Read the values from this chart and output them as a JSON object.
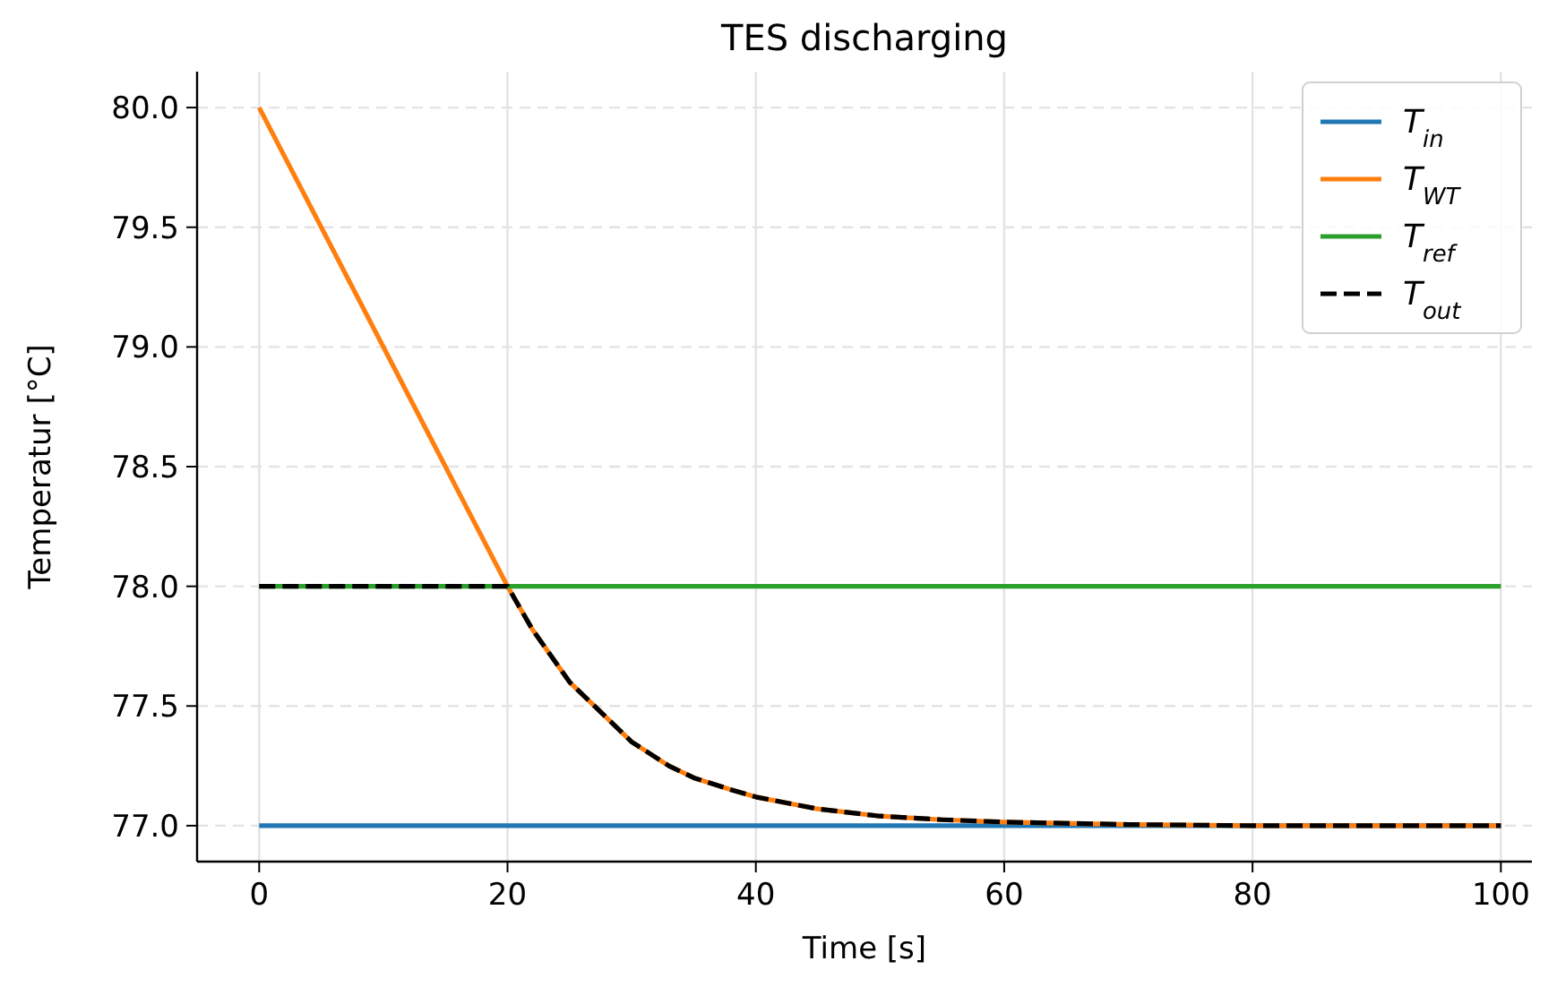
{
  "chart_data": {
    "type": "line",
    "title": "TES discharging",
    "xlabel": "Time [s]",
    "ylabel": "Temperatur [°C]",
    "xlim": [
      -5,
      102.5
    ],
    "ylim": [
      76.85,
      80.15
    ],
    "xticks": [
      0,
      20,
      40,
      60,
      80,
      100
    ],
    "yticks": [
      {
        "value": 77,
        "label": "77.0"
      },
      {
        "value": 77.5,
        "label": "77.5"
      },
      {
        "value": 78,
        "label": "78.0"
      },
      {
        "value": 78.5,
        "label": "78.5"
      },
      {
        "value": 79,
        "label": "79.0"
      },
      {
        "value": 79.5,
        "label": "79.5"
      },
      {
        "value": 80,
        "label": "80.0"
      }
    ],
    "grid": true,
    "legend": "top right",
    "series": [
      {
        "name": "T$_{in}$",
        "color": "#1f77b4",
        "x": [
          0,
          100
        ],
        "values": [
          77,
          77
        ]
      },
      {
        "name": "T$_{WT}$",
        "color": "#ff7f0e",
        "x": [
          0,
          20,
          22,
          25,
          28,
          30,
          33,
          35,
          38,
          40,
          45,
          50,
          55,
          60,
          70,
          80,
          90,
          100
        ],
        "values": [
          80,
          78,
          77.82,
          77.6,
          77.45,
          77.35,
          77.25,
          77.2,
          77.15,
          77.12,
          77.07,
          77.04,
          77.025,
          77.015,
          77.005,
          77.0,
          77.0,
          77.0
        ]
      },
      {
        "name": "T$_{ref}$",
        "color": "#2ca02c",
        "x": [
          0,
          100
        ],
        "values": [
          78,
          78
        ]
      },
      {
        "name": "T$_{out}$",
        "color": "#000000",
        "line_style": "dashed",
        "x": [
          0,
          20,
          22,
          25,
          28,
          30,
          33,
          35,
          38,
          40,
          45,
          50,
          55,
          60,
          70,
          80,
          90,
          100
        ],
        "values": [
          78,
          78,
          77.82,
          77.6,
          77.45,
          77.35,
          77.25,
          77.2,
          77.15,
          77.12,
          77.07,
          77.04,
          77.025,
          77.015,
          77.005,
          77.0,
          77.0,
          77.0
        ]
      }
    ]
  }
}
